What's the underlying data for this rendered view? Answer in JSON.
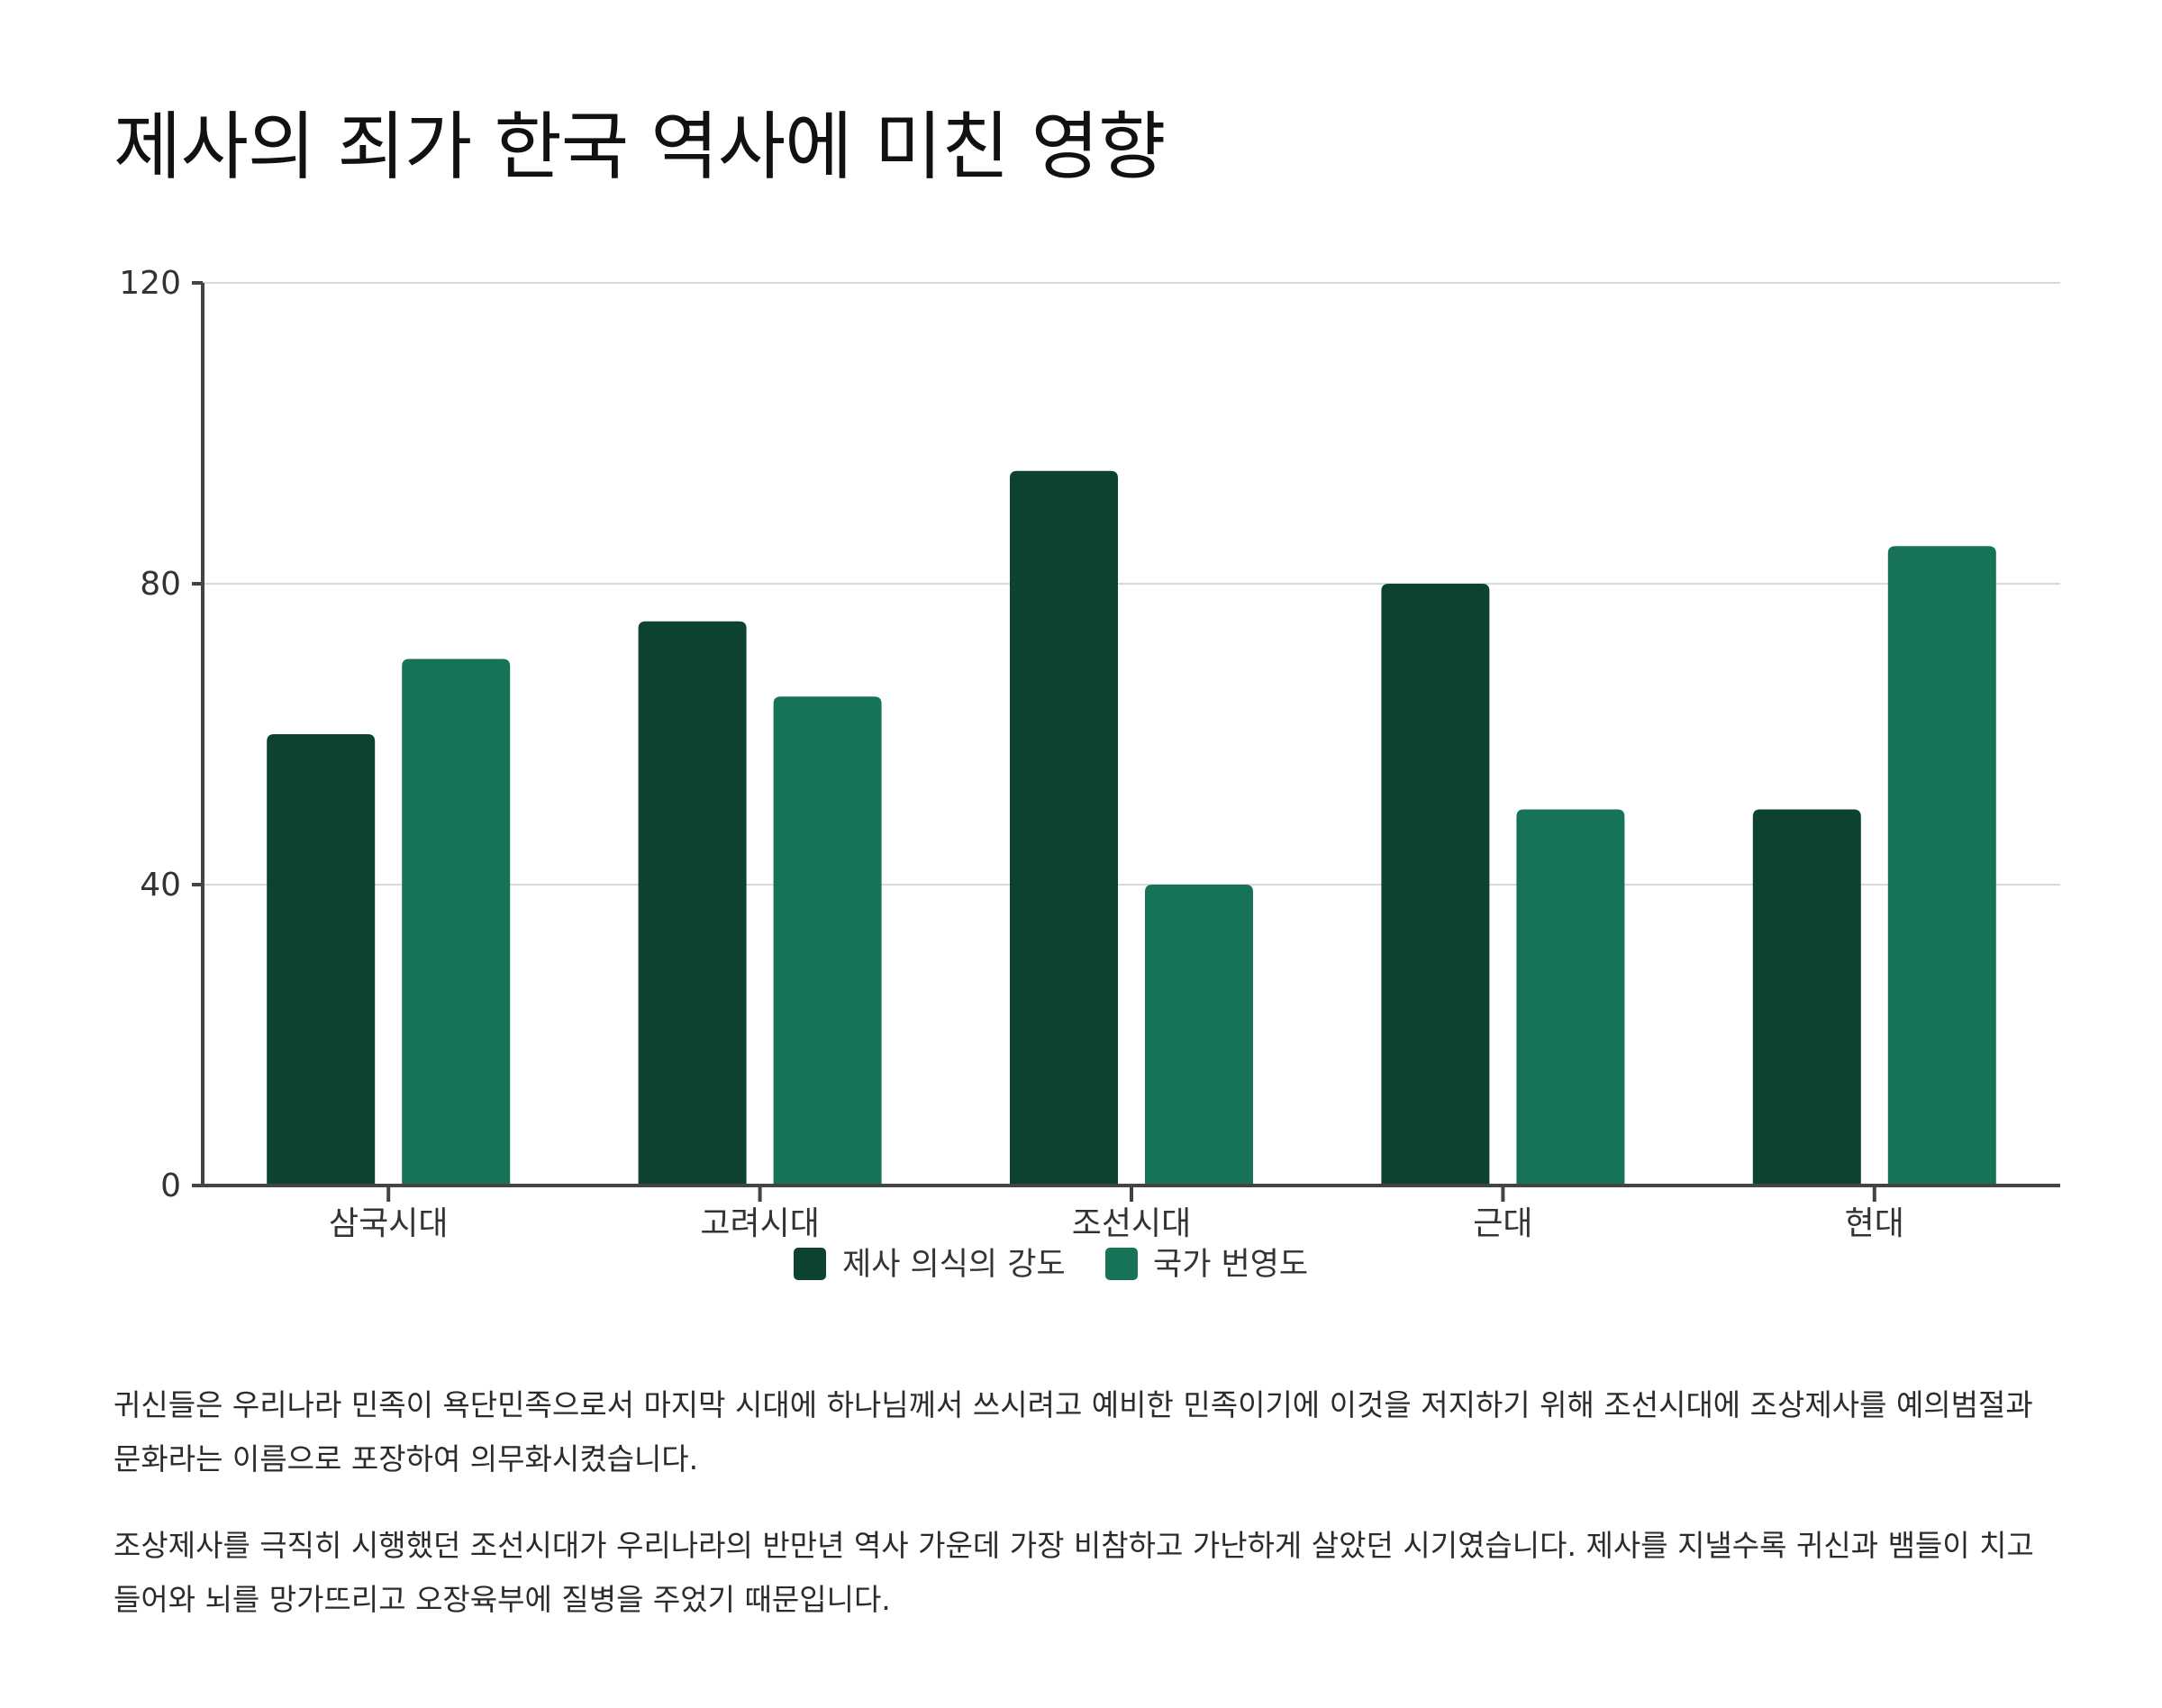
{
  "page": {
    "title": "제사의 죄가 한국 역사에 미친 영향",
    "paragraphs": [
      "귀신들은 우리나라 민족이 욕단민족으로서 마지막 시대에 하나님께서 쓰시려고 예비한 민족이기에 이것을 저지하기 위해 조선시대에 조상제사를 예의범절과 문화라는 이름으로 포장하여 의무화시켰습니다.",
      "조상제사를 극직히 시행했던 조선시대가 우리나라의 반만년 역사 가운데 가장 비참하고 가난하게 살았던 시기였습니다. 제사를 지낼수록 귀신과 뱀들이 치고 들어와 뇌를 망가뜨리고 오장육부에 질병을 주었기 때문입니다."
    ]
  },
  "chart_data": {
    "type": "bar",
    "title": "제사의 죄가 한국 역사에 미친 영향",
    "xlabel": "",
    "ylabel": "",
    "categories": [
      "삼국시대",
      "고려시대",
      "조선시대",
      "근대",
      "현대"
    ],
    "series": [
      {
        "name": "제사 의식의 강도",
        "values": [
          60,
          75,
          95,
          80,
          50
        ],
        "color": "#0e4230"
      },
      {
        "name": "국가 번영도",
        "values": [
          70,
          65,
          40,
          50,
          85
        ],
        "color": "#177357"
      }
    ],
    "ylim": [
      0,
      120
    ],
    "yticks": [
      "0",
      "40",
      "80",
      "120"
    ],
    "grid": true,
    "legend_position": "bottom-center"
  }
}
